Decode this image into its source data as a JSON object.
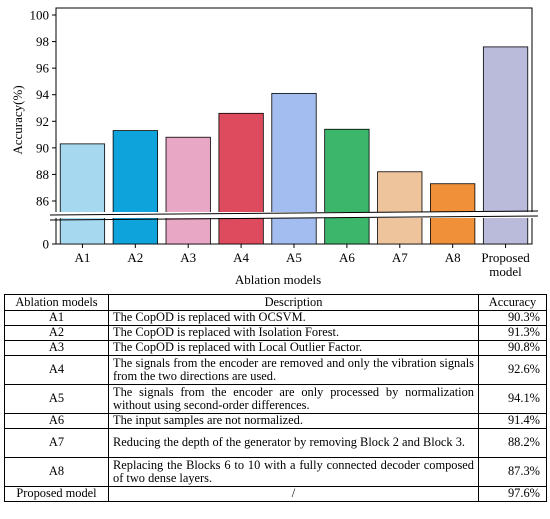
{
  "chart_data": {
    "type": "bar",
    "categories": [
      "A1",
      "A2",
      "A3",
      "A4",
      "A5",
      "A6",
      "A7",
      "A8",
      "Proposed model"
    ],
    "category_label_lines": [
      [
        "A1"
      ],
      [
        "A2"
      ],
      [
        "A3"
      ],
      [
        "A4"
      ],
      [
        "A5"
      ],
      [
        "A6"
      ],
      [
        "A7"
      ],
      [
        "A8"
      ],
      [
        "Proposed",
        "model"
      ]
    ],
    "values": [
      90.3,
      91.3,
      90.8,
      92.6,
      94.1,
      91.4,
      88.2,
      87.3,
      97.6
    ],
    "colors": [
      "#a6d8ef",
      "#0fa3dc",
      "#e8a7c4",
      "#de4b5f",
      "#a4bdf0",
      "#3bb66b",
      "#eec49d",
      "#f09038",
      "#babadb"
    ],
    "xlabel": "Ablation models",
    "ylabel": "Accuracy(%)",
    "ylim_upper": [
      84.5,
      100
    ],
    "yticks_upper": [
      86,
      88,
      90,
      92,
      94,
      96,
      98,
      100
    ],
    "ytick_lower": 0,
    "axis_break": true,
    "grid": false
  },
  "table": {
    "headers": [
      "Ablation models",
      "Description",
      "Accuracy"
    ],
    "rows": [
      {
        "model": "A1",
        "description": "The CopOD is replaced with OCSVM.",
        "accuracy": "90.3%",
        "lines": 1
      },
      {
        "model": "A2",
        "description": "The CopOD is replaced with Isolation Forest.",
        "accuracy": "91.3%",
        "lines": 1
      },
      {
        "model": "A3",
        "description": "The CopOD is replaced with Local Outlier Factor.",
        "accuracy": "90.8%",
        "lines": 1
      },
      {
        "model": "A4",
        "description": "The signals from the encoder are removed and only the vibration signals from the two directions are used.",
        "accuracy": "92.6%",
        "lines": 2
      },
      {
        "model": "A5",
        "description": "The signals from the encoder are only processed by normalization without using second-order differences.",
        "accuracy": "94.1%",
        "lines": 2
      },
      {
        "model": "A6",
        "description": "The input samples are not normalized.",
        "accuracy": "91.4%",
        "lines": 1
      },
      {
        "model": "A7",
        "description": "Reducing the depth of the generator by removing Block 2 and Block 3.",
        "accuracy": "88.2%",
        "lines": 2
      },
      {
        "model": "A8",
        "description": "Replacing the Blocks 6 to 10 with a fully connected decoder composed of two dense layers.",
        "accuracy": "87.3%",
        "lines": 2
      },
      {
        "model": "Proposed model",
        "description": "/",
        "accuracy": "97.6%",
        "lines": 1
      }
    ]
  }
}
